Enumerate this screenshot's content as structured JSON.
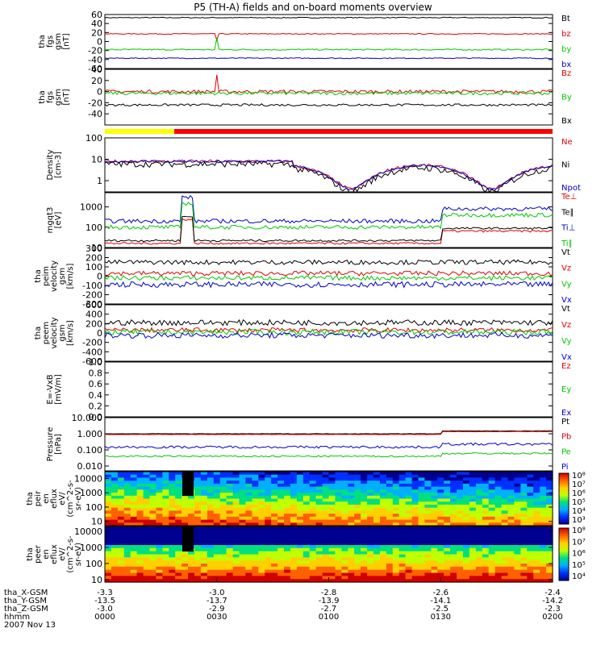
{
  "title": "P5 (TH-A) fields and on-board moments overview",
  "colors": {
    "black": "#000000",
    "red": "#e00000",
    "green": "#00c800",
    "blue": "#0000d0",
    "yellow": "#ffff00",
    "barred": "#ff0000"
  },
  "chart_data": [
    {
      "type": "line",
      "ylabel": [
        "tha",
        "fgs",
        "gsm",
        "[nT]"
      ],
      "ylim": [
        -60,
        60
      ],
      "yticks": [
        {
          "v": 60,
          "label": "60"
        },
        {
          "v": 40,
          "label": "40"
        },
        {
          "v": 20,
          "label": "20"
        },
        {
          "v": 0,
          "label": "0"
        },
        {
          "v": -20,
          "label": "-20"
        },
        {
          "v": -40,
          "label": "-40"
        },
        {
          "v": -60,
          "label": "-60"
        }
      ],
      "series": [
        {
          "name": "Bt",
          "color": "black",
          "base": 53,
          "noise": 1.0
        },
        {
          "name": "bz",
          "color": "red",
          "base": 17,
          "noise": 1.0,
          "spike": [
            0.25,
            -14
          ]
        },
        {
          "name": "by",
          "color": "green",
          "base": -18,
          "noise": 1.5,
          "spike": [
            0.25,
            26
          ]
        },
        {
          "name": "bx",
          "color": "blue",
          "base": -37,
          "noise": 1.0
        }
      ]
    },
    {
      "type": "line",
      "ylabel": [
        "tha",
        "fgs",
        "gsm",
        "[nT]"
      ],
      "ylim": [
        -60,
        40
      ],
      "yticks": [
        {
          "v": 40,
          "label": "40"
        },
        {
          "v": 20,
          "label": "20"
        },
        {
          "v": 0,
          "label": "0"
        },
        {
          "v": -20,
          "label": "-20"
        },
        {
          "v": -40,
          "label": "-40"
        }
      ],
      "series": [
        {
          "name": "Bz",
          "color": "red",
          "base": 0,
          "noise": 3,
          "spike": [
            0.25,
            30
          ]
        },
        {
          "name": "By",
          "color": "green",
          "base": -3,
          "noise": 3
        },
        {
          "name": "Bx",
          "color": "black",
          "base": -24,
          "noise": 2
        }
      ]
    },
    {
      "type": "line",
      "ylabel": [
        "Density",
        "[cm-3]"
      ],
      "yscale": "log",
      "ylim": [
        0.3,
        100
      ],
      "yticks": [
        {
          "v": 100,
          "label": "100"
        },
        {
          "v": 10,
          "label": "10"
        },
        {
          "v": 1,
          "label": "1"
        }
      ],
      "series": [
        {
          "name": "Ne",
          "color": "red",
          "base": 8,
          "noise": 0.15
        },
        {
          "name": "Ni",
          "color": "black",
          "base": 6,
          "noise": 0.3
        },
        {
          "name": "Npot",
          "color": "blue",
          "base": 8,
          "noise": 0.1
        }
      ]
    },
    {
      "type": "line",
      "ylabel": [
        "mgqt3",
        "[eV]"
      ],
      "yscale": "log",
      "ylim": [
        10,
        5000
      ],
      "yticks": [
        {
          "v": 1000,
          "label": "1000"
        },
        {
          "v": 100,
          "label": "100"
        },
        {
          "v": 10,
          "label": "10"
        }
      ],
      "series": [
        {
          "name": "Te⊥",
          "color": "red",
          "base": 16,
          "noise": 0.1
        },
        {
          "name": "Te∥",
          "color": "black",
          "base": 22,
          "noise": 0.1
        },
        {
          "name": "Ti⊥",
          "color": "blue",
          "base": 200,
          "noise": 0.2
        },
        {
          "name": "Ti∥",
          "color": "green",
          "base": 100,
          "noise": 0.2
        }
      ]
    },
    {
      "type": "line",
      "ylabel": [
        "tha",
        "peim",
        "velocity",
        "gsm",
        "[km/s]"
      ],
      "ylim": [
        -300,
        300
      ],
      "yticks": [
        {
          "v": 300,
          "label": "300"
        },
        {
          "v": 200,
          "label": "200"
        },
        {
          "v": 100,
          "label": "100"
        },
        {
          "v": 0,
          "label": "0"
        },
        {
          "v": -100,
          "label": "-100"
        },
        {
          "v": -200,
          "label": "-200"
        },
        {
          "v": -300,
          "label": "-300"
        }
      ],
      "series": [
        {
          "name": "Vt",
          "color": "black",
          "base": 150,
          "noise": 25
        },
        {
          "name": "Vz",
          "color": "red",
          "base": 30,
          "noise": 25
        },
        {
          "name": "Vy",
          "color": "green",
          "base": -20,
          "noise": 25
        },
        {
          "name": "Vx",
          "color": "blue",
          "base": -90,
          "noise": 30
        }
      ]
    },
    {
      "type": "line",
      "ylabel": [
        "tha",
        "peem",
        "velocity",
        "gsm",
        "[km/s]"
      ],
      "ylim": [
        -600,
        600
      ],
      "yticks": [
        {
          "v": 600,
          "label": "600"
        },
        {
          "v": 400,
          "label": "400"
        },
        {
          "v": 200,
          "label": "200"
        },
        {
          "v": 0,
          "label": "0"
        },
        {
          "v": -200,
          "label": "-200"
        },
        {
          "v": -400,
          "label": "-400"
        },
        {
          "v": -600,
          "label": "-600"
        }
      ],
      "series": [
        {
          "name": "Vt",
          "color": "black",
          "base": 220,
          "noise": 60
        },
        {
          "name": "Vz",
          "color": "red",
          "base": 60,
          "noise": 50
        },
        {
          "name": "Vy",
          "color": "green",
          "base": 20,
          "noise": 60
        },
        {
          "name": "Vx",
          "color": "blue",
          "base": -50,
          "noise": 60
        }
      ]
    },
    {
      "type": "line",
      "ylabel": [
        "E=-VxB",
        "[mV/m]"
      ],
      "ylim": [
        0,
        1
      ],
      "yticks": [
        {
          "v": 1.0,
          "label": "1.0"
        },
        {
          "v": 0.8,
          "label": "0.8"
        },
        {
          "v": 0.6,
          "label": "0.6"
        },
        {
          "v": 0.4,
          "label": "0.4"
        },
        {
          "v": 0.2,
          "label": "0.2"
        },
        {
          "v": 0.0,
          "label": "0.0"
        }
      ],
      "series": [
        {
          "name": "Ez",
          "color": "red",
          "empty": true
        },
        {
          "name": "Ey",
          "color": "green",
          "empty": true
        },
        {
          "name": "Ex",
          "color": "blue",
          "empty": true
        }
      ]
    },
    {
      "type": "line",
      "ylabel": [
        "Pressure",
        "[nPa]"
      ],
      "yscale": "log",
      "ylim": [
        0.005,
        10
      ],
      "yticks": [
        {
          "v": 10,
          "label": "10.000"
        },
        {
          "v": 1,
          "label": "1.000"
        },
        {
          "v": 0.1,
          "label": "0.100"
        },
        {
          "v": 0.01,
          "label": "0.010"
        }
      ],
      "series": [
        {
          "name": "Pt",
          "color": "black",
          "base": 1.0,
          "noise": 0.02
        },
        {
          "name": "Pb",
          "color": "red",
          "base": 0.9,
          "noise": 0.02
        },
        {
          "name": "Pe",
          "color": "green",
          "base": 0.04,
          "noise": 0.1
        },
        {
          "name": "Pi",
          "color": "blue",
          "base": 0.15,
          "noise": 0.15
        }
      ]
    },
    {
      "type": "heatmap",
      "ylabel": [
        "tha",
        "peir",
        "en",
        "eflux",
        "eV/",
        "(cm^2-s-",
        "sr-eV)"
      ],
      "yscale": "log",
      "ylim": [
        5,
        30000
      ],
      "yticks": [
        {
          "v": 10000,
          "label": "10000"
        },
        {
          "v": 1000,
          "label": "1000"
        },
        {
          "v": 100,
          "label": "100"
        },
        {
          "v": 10,
          "label": "10"
        }
      ],
      "colorbar": [
        "10⁸",
        "10⁷",
        "10⁶",
        "10⁵",
        "10⁴",
        "10³"
      ]
    },
    {
      "type": "heatmap",
      "ylabel": [
        "tha",
        "peer",
        "en",
        "eflux",
        "eV/",
        "(cm^2-s-",
        "sr-eV)"
      ],
      "yscale": "log",
      "ylim": [
        7,
        20000
      ],
      "yticks": [
        {
          "v": 10000,
          "label": "10000"
        },
        {
          "v": 1000,
          "label": "1000"
        },
        {
          "v": 100,
          "label": "100"
        },
        {
          "v": 10,
          "label": "10"
        }
      ],
      "colorbar": [
        "10⁸",
        "10⁷",
        "10⁶",
        "10⁵",
        "10⁴"
      ]
    }
  ],
  "xaxis": {
    "rows": [
      {
        "label": "tha_X-GSM",
        "values": [
          "-3.3",
          "-3.0",
          "-2.8",
          "-2.6",
          "-2.4"
        ]
      },
      {
        "label": "tha_Y-GSM",
        "values": [
          "-13.5",
          "-13.7",
          "-13.9",
          "-14.1",
          "-14.2"
        ]
      },
      {
        "label": "tha_Z-GSM",
        "values": [
          "-3.0",
          "-2.9",
          "-2.7",
          "-2.5",
          "-2.3"
        ]
      },
      {
        "label": "hhmm",
        "values": [
          "0000",
          "0030",
          "0100",
          "0130",
          "0200"
        ]
      }
    ],
    "date": "2007 Nov 13",
    "tick_fracs": [
      0,
      0.25,
      0.5,
      0.75,
      1
    ]
  },
  "mode_bar": {
    "yellow_until": 0.155
  }
}
